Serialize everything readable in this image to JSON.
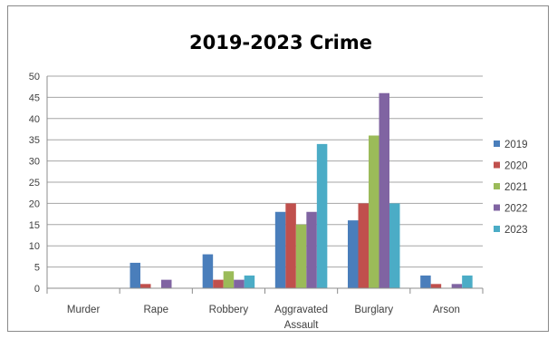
{
  "chart_data": {
    "type": "bar",
    "title": "2019-2023 Crime",
    "categories": [
      "Murder",
      "Rape",
      "Robbery",
      "Aggravated Assault",
      "Burglary",
      "Arson"
    ],
    "category_lines": [
      [
        "Murder"
      ],
      [
        "Rape"
      ],
      [
        "Robbery"
      ],
      [
        "Aggravated",
        "Assault"
      ],
      [
        "Burglary"
      ],
      [
        "Arson"
      ]
    ],
    "series": [
      {
        "name": "2019",
        "color": "#4a7ebb",
        "values": [
          0,
          6,
          8,
          18,
          16,
          3
        ]
      },
      {
        "name": "2020",
        "color": "#c0504d",
        "values": [
          0,
          1,
          2,
          20,
          20,
          1
        ]
      },
      {
        "name": "2021",
        "color": "#9bbb59",
        "values": [
          0,
          0,
          4,
          15,
          36,
          0
        ]
      },
      {
        "name": "2022",
        "color": "#8064a2",
        "values": [
          0,
          2,
          2,
          18,
          46,
          1
        ]
      },
      {
        "name": "2023",
        "color": "#4bacc6",
        "values": [
          0,
          0,
          3,
          34,
          20,
          3
        ]
      }
    ],
    "yticks": [
      0,
      5,
      10,
      15,
      20,
      25,
      30,
      35,
      40,
      45,
      50
    ],
    "ylim": [
      0,
      50
    ],
    "grid": true,
    "legend": "right"
  }
}
